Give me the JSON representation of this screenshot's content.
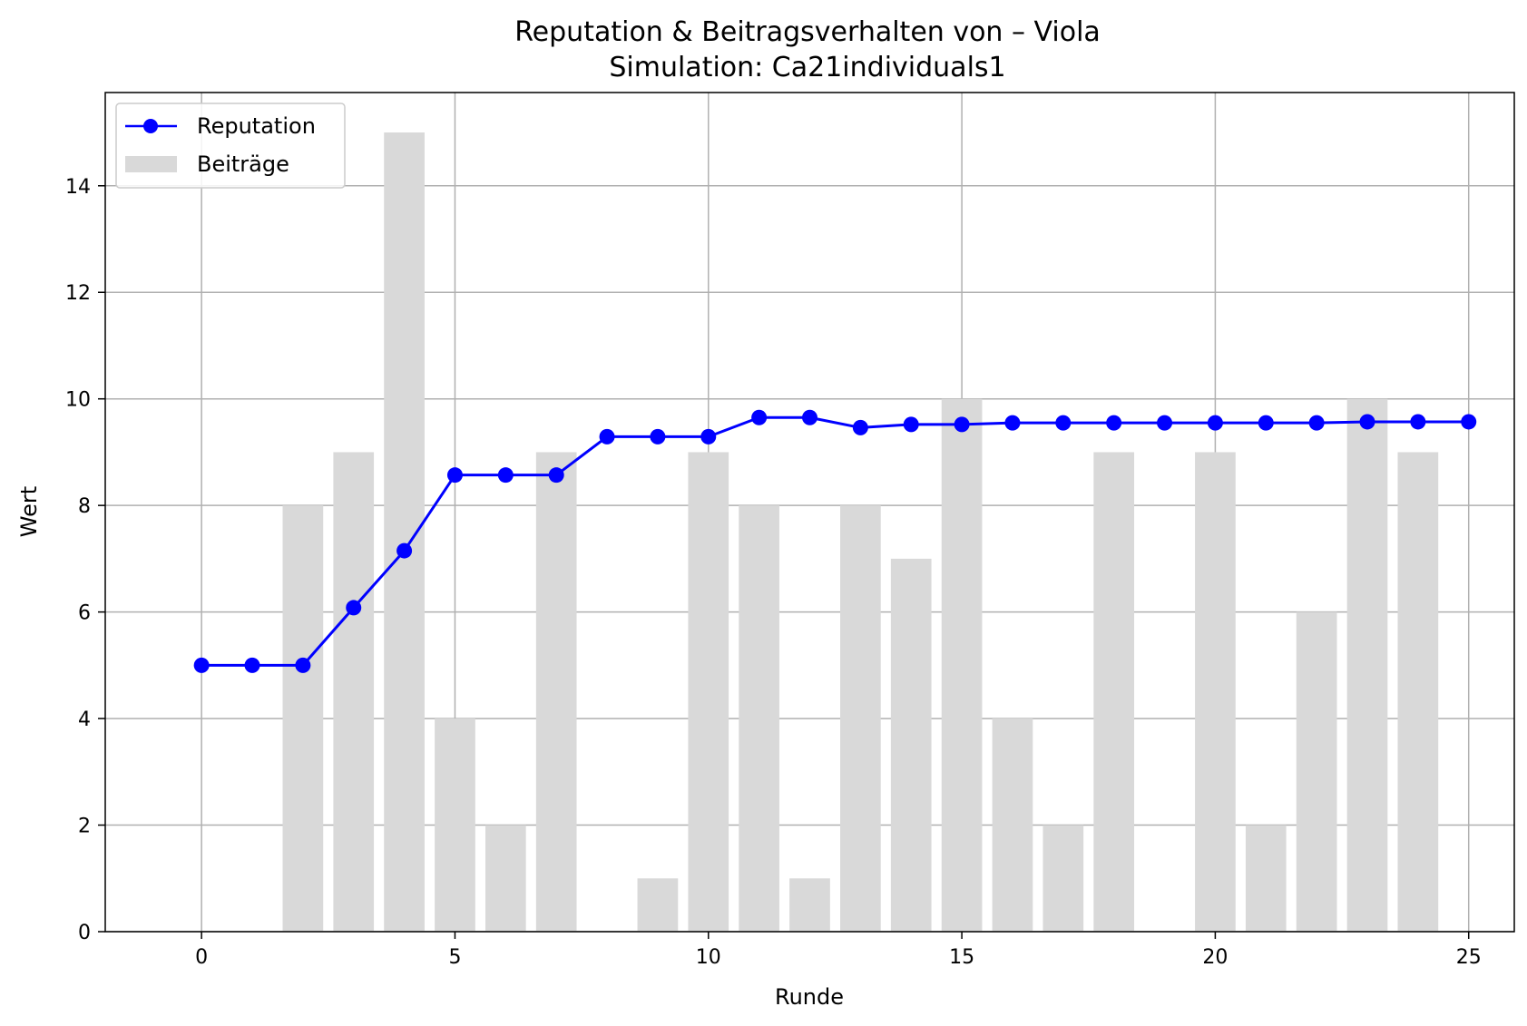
{
  "chart_data": {
    "type": "bar",
    "title": "Reputation & Beitragsverhalten von – Viola",
    "subtitle": "Simulation: Ca21individuals1",
    "xlabel": "Runde",
    "ylabel": "Wert",
    "xlim": [
      -1.9,
      25.9
    ],
    "ylim": [
      0,
      15.75
    ],
    "xticks": [
      0,
      5,
      10,
      15,
      20,
      25
    ],
    "yticks": [
      0,
      2,
      4,
      6,
      8,
      10,
      12,
      14
    ],
    "grid": true,
    "legend_position": "top-left",
    "x": [
      0,
      1,
      2,
      3,
      4,
      5,
      6,
      7,
      8,
      9,
      10,
      11,
      12,
      13,
      14,
      15,
      16,
      17,
      18,
      19,
      20,
      21,
      22,
      23,
      24,
      25
    ],
    "series": [
      {
        "name": "Reputation",
        "kind": "line",
        "color": "#0000ff",
        "marker": "circle",
        "values": [
          5.0,
          5.0,
          5.0,
          6.08,
          7.15,
          8.57,
          8.57,
          8.57,
          9.29,
          9.29,
          9.29,
          9.65,
          9.65,
          9.46,
          9.52,
          9.52,
          9.55,
          9.55,
          9.55,
          9.55,
          9.55,
          9.55,
          9.55,
          9.57,
          9.57,
          9.57
        ]
      },
      {
        "name": "Beiträge",
        "kind": "bar",
        "color": "#d9d9d9",
        "values": [
          0,
          0,
          8,
          9,
          15,
          4,
          2,
          9,
          0,
          1,
          9,
          8,
          1,
          8,
          7,
          10,
          4,
          2,
          9,
          0,
          9,
          2,
          6,
          10,
          9,
          0
        ]
      }
    ]
  }
}
